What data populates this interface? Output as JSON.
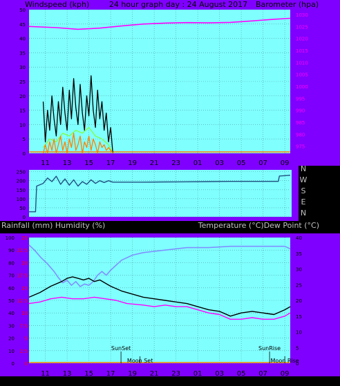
{
  "colors": {
    "frame": "#8000ff",
    "plot_bg": "#80ffff",
    "grid": "#4a9a9a",
    "wind_gust": "#000000",
    "wind_avg": "#80ff40",
    "wind_speed": "#ff8000",
    "barometer": "#ff00ff",
    "direction": "#205080",
    "humidity": "#8090ff",
    "temperature": "#000000",
    "dewpoint": "#ff00ff",
    "left_tick": "#ff0000",
    "sun_moon": "#000000",
    "axis_text": "#000000",
    "header_text": "#c0c0c0"
  },
  "chart_data": [
    {
      "id": "wind_baro",
      "type": "line",
      "title": "24 hour graph day : 24 August 2017",
      "left_label": "Windspeed (kph)",
      "right_label": "Barometer (hpa)",
      "x_ticks": [
        "11",
        "13",
        "15",
        "17",
        "19",
        "21",
        "23",
        "01",
        "03",
        "05",
        "07",
        "09"
      ],
      "x_range_hours": [
        9.5,
        33.5
      ],
      "left_ylim": [
        0,
        50
      ],
      "left_ticks": [
        0,
        5,
        10,
        15,
        20,
        25,
        30,
        35,
        40,
        45,
        50
      ],
      "right_ylim": [
        972,
        1032
      ],
      "right_ticks": [
        975,
        980,
        985,
        990,
        995,
        1000,
        1005,
        1010,
        1015,
        1020,
        1025,
        1030
      ],
      "grid": true,
      "series": [
        {
          "key": "barometer",
          "axis": "right",
          "color_key": "barometer",
          "x": [
            9.5,
            12,
            14,
            16,
            18,
            20,
            22,
            24,
            26,
            28,
            30,
            32,
            33.5
          ],
          "y": [
            1025,
            1024.5,
            1023.8,
            1024.3,
            1025.2,
            1026.0,
            1026.4,
            1026.6,
            1026.5,
            1026.7,
            1027.3,
            1028.0,
            1028.4
          ]
        },
        {
          "key": "gust",
          "axis": "left",
          "color_key": "wind_gust",
          "x": [
            10.8,
            11.0,
            11.2,
            11.4,
            11.6,
            11.8,
            12.0,
            12.2,
            12.4,
            12.6,
            12.8,
            13.0,
            13.2,
            13.4,
            13.6,
            13.8,
            14.0,
            14.2,
            14.4,
            14.6,
            14.8,
            15.0,
            15.2,
            15.4,
            15.6,
            15.8,
            16.0,
            16.2,
            16.4,
            16.6,
            16.8,
            17.0,
            17.2
          ],
          "y": [
            18,
            4,
            15,
            8,
            20,
            12,
            6,
            18,
            10,
            23,
            14,
            8,
            22,
            12,
            26,
            16,
            10,
            24,
            14,
            8,
            20,
            13,
            27,
            15,
            9,
            22,
            12,
            18,
            8,
            14,
            4,
            9,
            0
          ]
        },
        {
          "key": "avg",
          "axis": "left",
          "color_key": "wind_avg",
          "x": [
            10.8,
            11.4,
            12.0,
            12.6,
            13.2,
            13.8,
            14.4,
            15.0,
            15.6,
            16.2,
            16.8,
            17.2
          ],
          "y": [
            2,
            5,
            4,
            7,
            6,
            8,
            7,
            9,
            6,
            5,
            3,
            0
          ]
        },
        {
          "key": "speed",
          "axis": "left",
          "color_key": "wind_speed",
          "x": [
            10.8,
            11.0,
            11.2,
            11.4,
            11.6,
            11.8,
            12.0,
            12.2,
            12.4,
            12.6,
            12.8,
            13.0,
            13.2,
            13.4,
            13.6,
            13.8,
            14.0,
            14.2,
            14.4,
            14.6,
            14.8,
            15.0,
            15.2,
            15.4,
            15.6,
            15.8,
            16.0,
            16.2,
            16.4,
            16.6,
            16.8,
            17.2
          ],
          "y": [
            0,
            3,
            0,
            4,
            1,
            5,
            0,
            3,
            6,
            1,
            4,
            0,
            5,
            2,
            7,
            1,
            3,
            6,
            0,
            4,
            2,
            6,
            1,
            5,
            3,
            0,
            4,
            2,
            3,
            1,
            2,
            0
          ]
        }
      ]
    },
    {
      "id": "direction",
      "type": "line",
      "left_ticks": [
        0,
        50,
        100,
        150,
        200,
        250
      ],
      "ylim": [
        0,
        260
      ],
      "right_letters": [
        "N",
        "W",
        "S",
        "E",
        "N"
      ],
      "grid": true,
      "series": [
        {
          "key": "direction",
          "color_key": "direction",
          "x": [
            9.5,
            10.1,
            10.2,
            10.8,
            11.2,
            11.6,
            12.0,
            12.4,
            12.8,
            13.2,
            13.6,
            14.0,
            14.4,
            14.8,
            15.2,
            15.6,
            16.0,
            16.4,
            16.8,
            17.2,
            18,
            20,
            22,
            24,
            26,
            28,
            30,
            32.4,
            32.5,
            33.5
          ],
          "y": [
            28,
            28,
            170,
            185,
            215,
            195,
            225,
            180,
            210,
            175,
            205,
            170,
            195,
            180,
            205,
            185,
            200,
            190,
            200,
            192,
            192,
            192,
            193,
            194,
            195,
            196,
            196,
            196,
            226,
            230
          ]
        }
      ]
    },
    {
      "id": "temp_hum",
      "type": "line",
      "left_label": "Rainfall (mm)  Humidity (%)",
      "right_label": "Temperature (°C)Dew Point (°C)",
      "x_ticks": [
        "11",
        "13",
        "15",
        "17",
        "19",
        "21",
        "23",
        "01",
        "03",
        "05",
        "07",
        "09"
      ],
      "left_ticks": [
        0,
        10,
        20,
        30,
        40,
        50,
        60,
        70,
        80,
        90,
        100
      ],
      "left_ylim": [
        0,
        100
      ],
      "rain_ticks": [
        0,
        2.5,
        5,
        7.5,
        10,
        12.5,
        15,
        17.5,
        20,
        22.5,
        25
      ],
      "right_ticks": [
        0,
        5,
        10,
        15,
        20,
        25,
        30,
        35,
        40
      ],
      "right_ylim": [
        0,
        40
      ],
      "grid": true,
      "markers": [
        {
          "label": "SunSet",
          "hour": 17.95,
          "row": "upper"
        },
        {
          "label": "Moon Set",
          "hour": 19.7,
          "row": "lower"
        },
        {
          "label": "SunRise",
          "hour": 31.6,
          "row": "upper"
        },
        {
          "label": "Moon Rise",
          "hour": 33.0,
          "row": "lower"
        }
      ],
      "series": [
        {
          "key": "humidity",
          "axis": "left",
          "color_key": "humidity",
          "x": [
            9.5,
            10.0,
            10.6,
            11.2,
            11.8,
            12.2,
            12.6,
            13.0,
            13.4,
            13.8,
            14.2,
            14.6,
            15.0,
            15.4,
            15.8,
            16.2,
            16.6,
            17.0,
            17.5,
            18,
            19,
            20,
            21,
            22,
            24,
            26,
            28,
            30,
            32,
            33,
            33.5
          ],
          "y": [
            94,
            90,
            84,
            79,
            73,
            68,
            64,
            66,
            62,
            65,
            61,
            63,
            62,
            65,
            70,
            73,
            70,
            74,
            78,
            82,
            86,
            88,
            89,
            90,
            92,
            92,
            93,
            93,
            93,
            93,
            91
          ]
        },
        {
          "key": "temperature",
          "axis": "right",
          "color_key": "temperature",
          "x": [
            9.5,
            10.5,
            11.5,
            12.5,
            13.0,
            13.5,
            14.0,
            14.5,
            15.0,
            15.5,
            16.0,
            16.5,
            17.0,
            18,
            19,
            20,
            21,
            22,
            23,
            24,
            25,
            26,
            27,
            28,
            29,
            30,
            31,
            32,
            33,
            33.5
          ],
          "y": [
            21,
            22.5,
            24.5,
            26,
            27,
            27.5,
            27,
            26.5,
            27,
            26,
            26.5,
            25.5,
            24.5,
            23,
            22,
            21,
            20.5,
            20,
            19.5,
            19,
            18,
            17,
            16.5,
            15,
            16,
            16.5,
            16,
            15.5,
            17,
            18
          ]
        },
        {
          "key": "dewpoint",
          "axis": "right",
          "color_key": "dewpoint",
          "x": [
            9.5,
            10.5,
            11.5,
            12.5,
            13.5,
            14.5,
            15.5,
            16.5,
            17.5,
            18.5,
            20,
            21,
            22,
            23,
            24,
            25,
            26,
            27,
            28,
            29,
            30,
            31,
            32,
            33,
            33.5
          ],
          "y": [
            19,
            19.5,
            20.5,
            21,
            20.5,
            20.5,
            21,
            20.5,
            20,
            19,
            18.5,
            18,
            18.5,
            18,
            18,
            17,
            16,
            15.5,
            14,
            14,
            14.5,
            14,
            14,
            15,
            16
          ]
        }
      ]
    }
  ]
}
